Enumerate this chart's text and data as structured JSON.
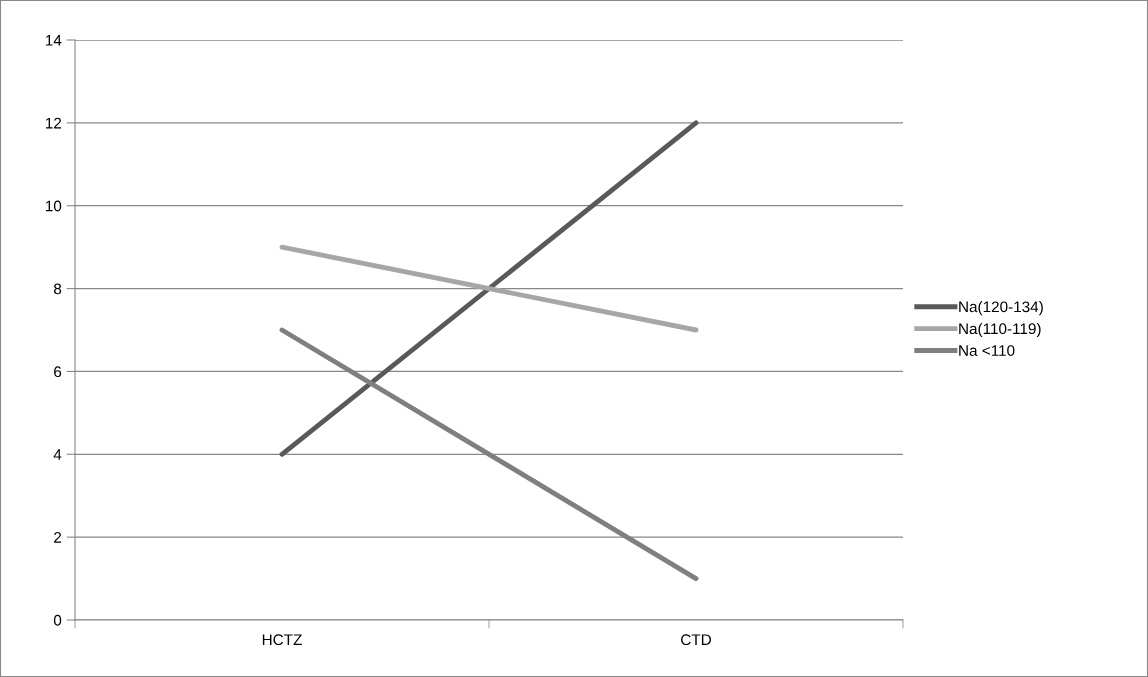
{
  "chart_data": {
    "type": "line",
    "categories": [
      "HCTZ",
      "CTD"
    ],
    "series": [
      {
        "name": "Na(120-134)",
        "color": "#595959",
        "values": [
          4,
          12
        ]
      },
      {
        "name": "Na(110-119)",
        "color": "#a6a6a6",
        "values": [
          9,
          7
        ]
      },
      {
        "name": "Na <110",
        "color": "#7f7f7f",
        "values": [
          7,
          1
        ]
      }
    ],
    "ylim": [
      0,
      14
    ],
    "yticks": [
      0,
      2,
      4,
      6,
      8,
      10,
      12,
      14
    ],
    "grid": "y",
    "legend": "right",
    "marker": "none",
    "line_style": "solid"
  }
}
